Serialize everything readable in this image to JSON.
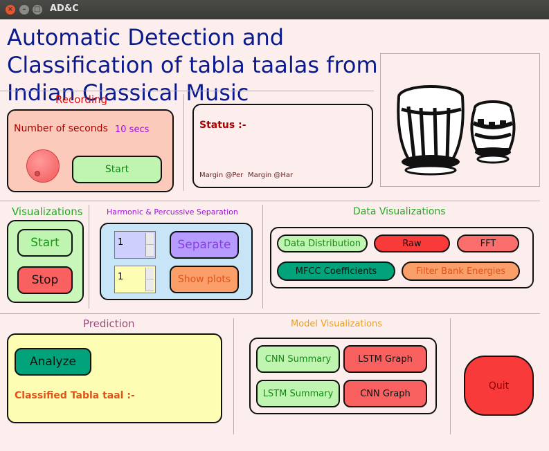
{
  "window": {
    "title": "AD&C"
  },
  "header": {
    "title": "Automatic Detection and Classification of tabla taalas from Indian Classical Music"
  },
  "recording": {
    "heading": "Recording",
    "seconds_label": "Number of seconds",
    "seconds_value": "10 secs",
    "start_label": "Start"
  },
  "status": {
    "label": "Status :-",
    "margin_per": "Margin @Per",
    "margin_har": "Margin @Har"
  },
  "visualizations": {
    "heading": "Visualizations",
    "start_label": "Start",
    "stop_label": "Stop"
  },
  "separation": {
    "heading": "Harmonic & Percussive Separation",
    "spin1_value": "1",
    "spin2_value": "1",
    "separate_label": "Separate",
    "show_plots_label": "Show plots"
  },
  "data_vis": {
    "heading": "Data Visualizations",
    "buttons": [
      "Data Distribution",
      "Raw",
      "FFT",
      "MFCC Coefficients",
      "Filter Bank Energies"
    ]
  },
  "prediction": {
    "heading": "Prediction",
    "analyze_label": "Analyze",
    "result_label": "Classified Tabla taal :-"
  },
  "model_vis": {
    "heading": "Model Visualizations",
    "buttons": [
      "CNN Summary",
      "LSTM Graph",
      "LSTM Summary",
      "CNN Graph"
    ]
  },
  "quit_label": "Quit",
  "colors": {
    "background": "#fdeeee",
    "title": "#0a1a8c",
    "green": "#bff5b0",
    "red": "#f96060",
    "orange": "#fa9e6a",
    "teal": "#00a37a",
    "purple": "#b388ff",
    "yellow": "#fdfeb3"
  }
}
